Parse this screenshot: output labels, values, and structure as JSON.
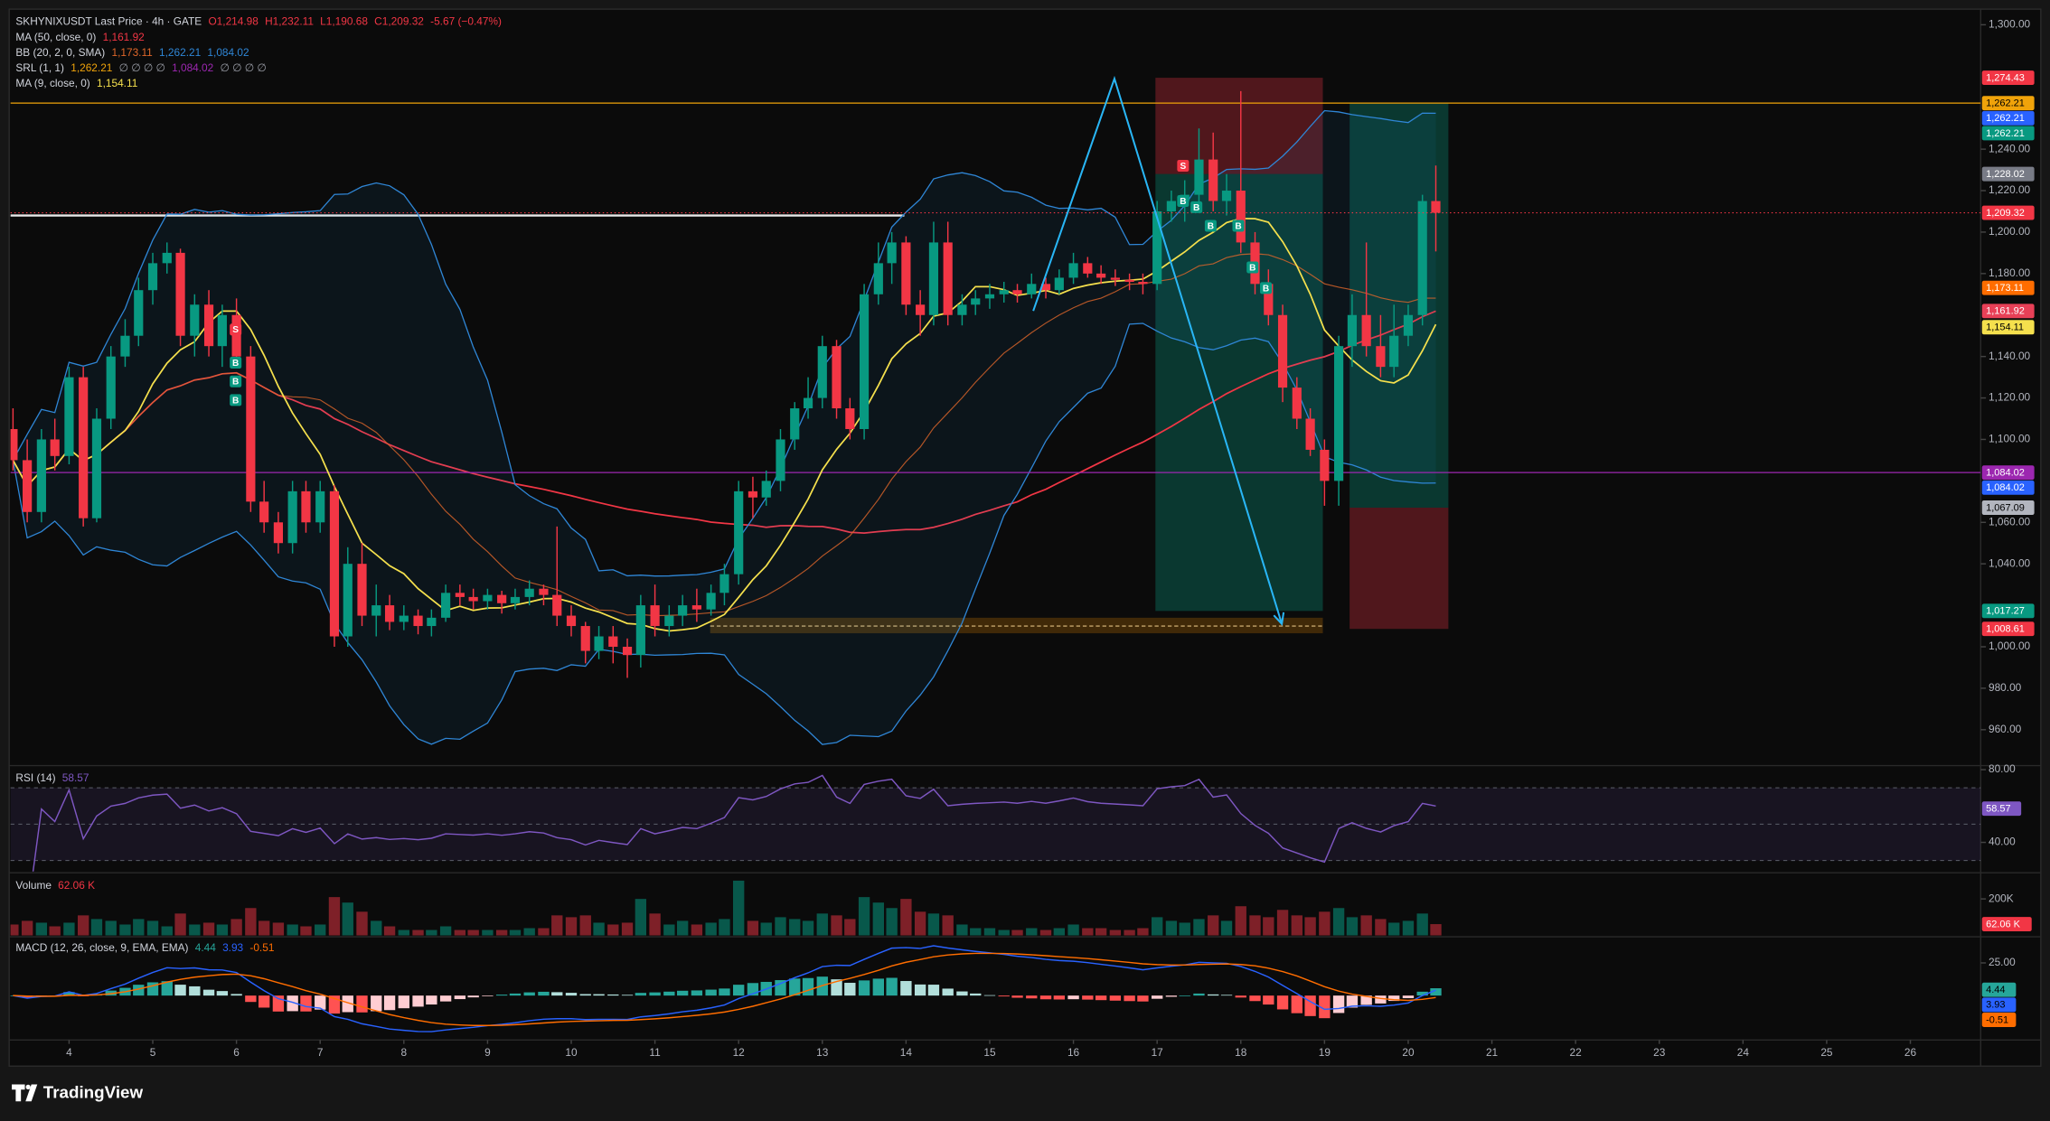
{
  "chart_data": {
    "type": "candlestick",
    "header": {
      "symbol": "SKHYNIXUSDT Last Price · 4h · GATE",
      "open": "O1,214.98",
      "high": "H1,232.11",
      "low": "L1,190.68",
      "close": "C1,209.32",
      "change": "-5.67 (−0.47%)",
      "color": "#f23645"
    },
    "up_color": "#089981",
    "down_color": "#f23645",
    "x": [
      3.33,
      3.5,
      3.67,
      3.83,
      4,
      4.17,
      4.33,
      4.5,
      4.67,
      4.83,
      5,
      5.17,
      5.33,
      5.5,
      5.67,
      5.83,
      6,
      6.17,
      6.33,
      6.5,
      6.67,
      6.83,
      7,
      7.17,
      7.33,
      7.5,
      7.67,
      7.83,
      8,
      8.17,
      8.33,
      8.5,
      8.67,
      8.83,
      9,
      9.17,
      9.33,
      9.5,
      9.67,
      9.83,
      10,
      10.17,
      10.33,
      10.5,
      10.67,
      10.83,
      11,
      11.17,
      11.33,
      11.5,
      11.67,
      11.83,
      12,
      12.17,
      12.33,
      12.5,
      12.67,
      12.83,
      13,
      13.17,
      13.33,
      13.5,
      13.67,
      13.83,
      14,
      14.17,
      14.33,
      14.5,
      14.67,
      14.83,
      15,
      15.17,
      15.33,
      15.5,
      15.67,
      15.83,
      16,
      16.17,
      16.33,
      16.5,
      16.67,
      16.83,
      17,
      17.17,
      17.33,
      17.5,
      17.67,
      17.83,
      18,
      18.17,
      18.33,
      18.5,
      18.67,
      18.83,
      19,
      19.17,
      19.33,
      19.5,
      19.67,
      19.83,
      20,
      20.17,
      20.33
    ],
    "ohlc": [
      [
        1105,
        1115,
        1085,
        1090,
        60
      ],
      [
        1090,
        1100,
        1060,
        1065,
        80
      ],
      [
        1065,
        1105,
        1060,
        1100,
        70
      ],
      [
        1100,
        1110,
        1085,
        1092,
        50
      ],
      [
        1092,
        1135,
        1088,
        1130,
        70
      ],
      [
        1130,
        1135,
        1058,
        1062,
        110
      ],
      [
        1062,
        1115,
        1060,
        1110,
        90
      ],
      [
        1110,
        1145,
        1105,
        1140,
        80
      ],
      [
        1140,
        1158,
        1135,
        1150,
        60
      ],
      [
        1150,
        1178,
        1145,
        1172,
        90
      ],
      [
        1172,
        1190,
        1165,
        1185,
        80
      ],
      [
        1185,
        1195,
        1180,
        1190,
        50
      ],
      [
        1190,
        1192,
        1145,
        1150,
        120
      ],
      [
        1150,
        1170,
        1140,
        1165,
        60
      ],
      [
        1165,
        1172,
        1140,
        1145,
        70
      ],
      [
        1145,
        1165,
        1135,
        1160,
        60
      ],
      [
        1160,
        1168,
        1135,
        1140,
        90
      ],
      [
        1140,
        1145,
        1065,
        1070,
        150
      ],
      [
        1070,
        1080,
        1055,
        1060,
        80
      ],
      [
        1060,
        1065,
        1045,
        1050,
        70
      ],
      [
        1050,
        1080,
        1045,
        1075,
        60
      ],
      [
        1075,
        1080,
        1055,
        1060,
        50
      ],
      [
        1060,
        1080,
        1055,
        1075,
        60
      ],
      [
        1075,
        1078,
        1000,
        1005,
        210
      ],
      [
        1005,
        1048,
        1000,
        1040,
        180
      ],
      [
        1040,
        1050,
        1010,
        1015,
        130
      ],
      [
        1015,
        1030,
        1005,
        1020,
        80
      ],
      [
        1020,
        1025,
        1008,
        1012,
        50
      ],
      [
        1012,
        1020,
        1008,
        1015,
        30
      ],
      [
        1015,
        1018,
        1006,
        1010,
        30
      ],
      [
        1010,
        1018,
        1005,
        1014,
        30
      ],
      [
        1014,
        1030,
        1012,
        1026,
        50
      ],
      [
        1026,
        1030,
        1020,
        1024,
        30
      ],
      [
        1024,
        1028,
        1018,
        1022,
        30
      ],
      [
        1022,
        1028,
        1018,
        1025,
        30
      ],
      [
        1025,
        1027,
        1016,
        1021,
        30
      ],
      [
        1021,
        1028,
        1018,
        1024,
        30
      ],
      [
        1024,
        1032,
        1020,
        1028,
        40
      ],
      [
        1028,
        1030,
        1020,
        1025,
        40
      ],
      [
        1025,
        1058,
        1010,
        1015,
        110
      ],
      [
        1015,
        1020,
        1005,
        1010,
        100
      ],
      [
        1010,
        1012,
        992,
        998,
        110
      ],
      [
        998,
        1010,
        994,
        1005,
        70
      ],
      [
        1005,
        1010,
        992,
        1000,
        60
      ],
      [
        1000,
        1004,
        985,
        996,
        70
      ],
      [
        996,
        1025,
        990,
        1020,
        200
      ],
      [
        1020,
        1030,
        1005,
        1010,
        120
      ],
      [
        1010,
        1020,
        1005,
        1015,
        60
      ],
      [
        1015,
        1025,
        1010,
        1020,
        80
      ],
      [
        1020,
        1028,
        1012,
        1018,
        60
      ],
      [
        1018,
        1030,
        1015,
        1026,
        70
      ],
      [
        1026,
        1040,
        1020,
        1035,
        90
      ],
      [
        1035,
        1080,
        1030,
        1075,
        300
      ],
      [
        1075,
        1082,
        1062,
        1072,
        80
      ],
      [
        1072,
        1085,
        1068,
        1080,
        70
      ],
      [
        1080,
        1105,
        1075,
        1100,
        100
      ],
      [
        1100,
        1118,
        1095,
        1115,
        90
      ],
      [
        1115,
        1130,
        1110,
        1120,
        80
      ],
      [
        1120,
        1150,
        1115,
        1145,
        120
      ],
      [
        1145,
        1148,
        1110,
        1115,
        110
      ],
      [
        1115,
        1120,
        1100,
        1105,
        90
      ],
      [
        1105,
        1175,
        1100,
        1170,
        210
      ],
      [
        1170,
        1195,
        1165,
        1185,
        180
      ],
      [
        1185,
        1200,
        1175,
        1195,
        150
      ],
      [
        1195,
        1198,
        1160,
        1165,
        200
      ],
      [
        1165,
        1172,
        1150,
        1160,
        130
      ],
      [
        1160,
        1205,
        1155,
        1195,
        120
      ],
      [
        1195,
        1205,
        1155,
        1160,
        110
      ],
      [
        1160,
        1170,
        1155,
        1165,
        60
      ],
      [
        1165,
        1172,
        1160,
        1168,
        40
      ],
      [
        1168,
        1175,
        1163,
        1170,
        40
      ],
      [
        1170,
        1176,
        1166,
        1172,
        30
      ],
      [
        1172,
        1175,
        1166,
        1170,
        30
      ],
      [
        1170,
        1180,
        1168,
        1175,
        40
      ],
      [
        1175,
        1178,
        1168,
        1172,
        30
      ],
      [
        1172,
        1182,
        1170,
        1178,
        40
      ],
      [
        1178,
        1190,
        1175,
        1185,
        60
      ],
      [
        1185,
        1188,
        1178,
        1180,
        40
      ],
      [
        1180,
        1184,
        1175,
        1178,
        40
      ],
      [
        1178,
        1182,
        1174,
        1177,
        30
      ],
      [
        1177,
        1180,
        1172,
        1176,
        30
      ],
      [
        1176,
        1180,
        1170,
        1175,
        40
      ],
      [
        1175,
        1215,
        1172,
        1210,
        100
      ],
      [
        1210,
        1220,
        1205,
        1215,
        80
      ],
      [
        1215,
        1225,
        1205,
        1218,
        70
      ],
      [
        1218,
        1250,
        1212,
        1235,
        90
      ],
      [
        1235,
        1248,
        1210,
        1215,
        110
      ],
      [
        1215,
        1228,
        1208,
        1220,
        80
      ],
      [
        1220,
        1268,
        1190,
        1195,
        160
      ],
      [
        1195,
        1200,
        1170,
        1175,
        110
      ],
      [
        1175,
        1182,
        1155,
        1160,
        100
      ],
      [
        1160,
        1165,
        1118,
        1125,
        140
      ],
      [
        1125,
        1130,
        1105,
        1110,
        110
      ],
      [
        1110,
        1115,
        1092,
        1095,
        100
      ],
      [
        1095,
        1100,
        1068,
        1080,
        130
      ],
      [
        1080,
        1150,
        1068,
        1145,
        150
      ],
      [
        1145,
        1170,
        1135,
        1160,
        100
      ],
      [
        1160,
        1195,
        1140,
        1145,
        110
      ],
      [
        1145,
        1160,
        1130,
        1135,
        90
      ],
      [
        1135,
        1165,
        1130,
        1150,
        70
      ],
      [
        1150,
        1165,
        1145,
        1160,
        80
      ],
      [
        1160,
        1218,
        1155,
        1214.98,
        120
      ],
      [
        1214.98,
        1232.11,
        1190.68,
        1209.32,
        62.06
      ]
    ],
    "xlim": [
      3.3,
      26.84
    ],
    "xticks": [
      4,
      5,
      6,
      7,
      8,
      9,
      10,
      11,
      12,
      13,
      14,
      15,
      16,
      17,
      18,
      19,
      20,
      21,
      22,
      23,
      24,
      25,
      26
    ],
    "ylim": [
      943.3,
      1306.9
    ],
    "yticks": [
      {
        "value": 1300,
        "label": "1,300.00"
      },
      {
        "value": 1240,
        "label": "1,240.00"
      },
      {
        "value": 1220,
        "label": "1,220.00"
      },
      {
        "value": 1200,
        "label": "1,200.00"
      },
      {
        "value": 1180,
        "label": "1,180.00"
      },
      {
        "value": 1140,
        "label": "1,140.00"
      },
      {
        "value": 1120,
        "label": "1,120.00"
      },
      {
        "value": 1100,
        "label": "1,100.00"
      },
      {
        "value": 1060,
        "label": "1,060.00"
      },
      {
        "value": 1040,
        "label": "1,040.00"
      },
      {
        "value": 1000,
        "label": "1,000.00"
      },
      {
        "value": 980,
        "label": "980.00"
      },
      {
        "value": 960,
        "label": "960.00"
      }
    ],
    "indicators": [
      {
        "name": "MA (50, close, 0)",
        "kind": "sma",
        "period": 50,
        "readouts": [
          {
            "value": 1161.92,
            "label": "1,161.92",
            "color": "#f23645"
          }
        ]
      },
      {
        "name": "BB (20, 2, 0, SMA)",
        "kind": "bb",
        "period": 20,
        "mult": 2,
        "fill": "rgba(33,150,243,0.07)",
        "readouts": [
          {
            "value": 1173.11,
            "label": "1,173.11",
            "color": "#e0672a"
          },
          {
            "value": 1262.21,
            "label": "1,262.21",
            "color": "#2f86d6"
          },
          {
            "value": 1084.02,
            "label": "1,084.02",
            "color": "#2f86d6"
          }
        ]
      },
      {
        "name": "SRL (1, 1)",
        "kind": "levels",
        "readouts": [
          {
            "value": 1262.21,
            "label": "1,262.21",
            "color": "#f0a30a"
          },
          {
            "text": "∅ ∅ ∅ ∅",
            "color": "#9598a1"
          },
          {
            "value": 1084.02,
            "label": "1,084.02",
            "color": "#9c27b0"
          },
          {
            "text": "∅ ∅ ∅ ∅",
            "color": "#9598a1"
          }
        ]
      },
      {
        "name": "MA (9, close, 0)",
        "kind": "sma",
        "period": 9,
        "readouts": [
          {
            "value": 1154.11,
            "label": "1,154.11",
            "color": "#f5e04d"
          }
        ]
      }
    ],
    "price_labels": [
      {
        "value": 1274.43,
        "label": "1,274.43",
        "color": "#f23645",
        "text_color": "#ffffff"
      },
      {
        "value": 1262.21,
        "label": "1,262.21",
        "color": "#f0a30a",
        "text_color": "#000000"
      },
      {
        "value": 1262.21,
        "label": "1,262.21",
        "color": "#2962ff",
        "text_color": "#ffffff"
      },
      {
        "value": 1262.21,
        "label": "1,262.21",
        "color": "#089981",
        "text_color": "#ffffff"
      },
      {
        "value": 1228.02,
        "label": "1,228.02",
        "color": "#787b86",
        "text_color": "#ffffff"
      },
      {
        "value": 1209.32,
        "label": "1,209.32",
        "color": "#f23645",
        "text_color": "#ffffff"
      },
      {
        "value": 1173.11,
        "label": "1,173.11",
        "color": "#ff6d00",
        "text_color": "#ffffff"
      },
      {
        "value": 1161.92,
        "label": "1,161.92",
        "color": "#e84057",
        "text_color": "#ffffff"
      },
      {
        "value": 1154.11,
        "label": "1,154.11",
        "color": "#f5e04d",
        "text_color": "#000000"
      },
      {
        "value": 1084.02,
        "label": "1,084.02",
        "color": "#9c27b0",
        "text_color": "#ffffff"
      },
      {
        "value": 1084.02,
        "label": "1,084.02",
        "color": "#2962ff",
        "text_color": "#ffffff"
      },
      {
        "value": 1067.09,
        "label": "1,067.09",
        "color": "#b2b5be",
        "text_color": "#000000"
      },
      {
        "value": 1017.27,
        "label": "1,017.27",
        "color": "#089981",
        "text_color": "#ffffff"
      },
      {
        "value": 1008.61,
        "label": "1,008.61",
        "color": "#f23645",
        "text_color": "#ffffff"
      }
    ],
    "drawings": {
      "white_line": {
        "x": [
          3.3,
          13.98
        ],
        "price": 1208,
        "color": "#e8e8e8"
      },
      "short_position": {
        "x": [
          16.98,
          18.98
        ],
        "stop": 1274.43,
        "entry": 1228.02,
        "target": 1017.27
      },
      "long_position": {
        "x": [
          19.3,
          20.48
        ],
        "target": 1262.21,
        "entry": 1067.09,
        "stop": 1008.61
      },
      "profit_color": "rgba(8,153,129,0.32)",
      "loss_color": "rgba(242,54,69,0.3)",
      "zone": {
        "x": [
          11.66,
          18.98
        ],
        "top": 1014,
        "bottom": 1006.5,
        "mid": 1010,
        "color": "rgba(255,152,0,0.22)"
      },
      "zigzag": {
        "x": [
          15.52,
          16.49,
          18.49
        ],
        "y": [
          1162,
          1274,
          1011
        ],
        "color": "#29b6f6"
      }
    },
    "signals": [
      {
        "x": 5.99,
        "price": 1153,
        "label": "S"
      },
      {
        "x": 5.99,
        "price": 1137,
        "label": "B"
      },
      {
        "x": 5.99,
        "price": 1128,
        "label": "B"
      },
      {
        "x": 5.99,
        "price": 1119,
        "label": "B"
      },
      {
        "x": 17.31,
        "price": 1232,
        "label": "S"
      },
      {
        "x": 17.31,
        "price": 1215,
        "label": "B"
      },
      {
        "x": 17.47,
        "price": 1212,
        "label": "B"
      },
      {
        "x": 17.64,
        "price": 1203,
        "label": "B"
      },
      {
        "x": 17.97,
        "price": 1203,
        "label": "B"
      },
      {
        "x": 18.14,
        "price": 1183,
        "label": "B"
      },
      {
        "x": 18.3,
        "price": 1173,
        "label": "B"
      }
    ],
    "signal_colors": {
      "S": "#f23645",
      "B": "#089981"
    },
    "rsi": {
      "title": "RSI (14)",
      "period": 14,
      "color": "#7e57c2",
      "bands": [
        70,
        50,
        30
      ],
      "readout": {
        "value": 58.57,
        "label": "58.57",
        "color": "#7e57c2"
      },
      "ylim": [
        24,
        81.5
      ],
      "yticks": [
        {
          "value": 80,
          "label": "80.00"
        },
        {
          "value": 40,
          "label": "40.00"
        }
      ]
    },
    "volume": {
      "title": "Volume",
      "readout": {
        "value": 62.06,
        "label": "62.06 K",
        "color": "#f23645"
      },
      "ylim": [
        0,
        336
      ],
      "yticks": [
        {
          "value": 200,
          "label": "200K"
        }
      ]
    },
    "macd": {
      "title": "MACD (12, 26, close, 9, EMA, EMA)",
      "fast": 12,
      "slow": 26,
      "signal": 9,
      "hist_colors": [
        "#26a69a",
        "#b2dfdb",
        "#ffcdd2",
        "#ff5252"
      ],
      "readouts": [
        {
          "value": 4.44,
          "label": "4.44",
          "color": "#26a69a"
        },
        {
          "value": 3.93,
          "label": "3.93",
          "color": "#2962ff"
        },
        {
          "value": -0.51,
          "label": "-0.51",
          "color": "#ff6d00"
        }
      ],
      "ylim": [
        -33,
        44
      ],
      "yticks": [
        {
          "value": 25,
          "label": "25.00"
        }
      ]
    },
    "branding": "TradingView"
  }
}
